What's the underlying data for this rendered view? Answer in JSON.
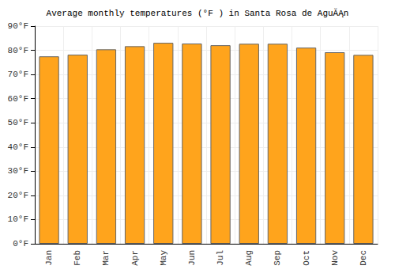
{
  "chart_data": {
    "type": "bar",
    "title": "Average monthly temperatures (°F ) in Santa Rosa de AguĂĄn",
    "categories": [
      "Jan",
      "Feb",
      "Mar",
      "Apr",
      "May",
      "Jun",
      "Jul",
      "Aug",
      "Sep",
      "Oct",
      "Nov",
      "Dec"
    ],
    "values": [
      77.5,
      78.2,
      80.4,
      81.7,
      83.1,
      82.8,
      82.1,
      82.7,
      82.7,
      81.1,
      79.2,
      78.1
    ],
    "color": "#ffa41c",
    "ylim": [
      0,
      90
    ],
    "yticks": [
      {
        "value": 0,
        "label": "0°F"
      },
      {
        "value": 10,
        "label": "10°F"
      },
      {
        "value": 20,
        "label": "20°F"
      },
      {
        "value": 30,
        "label": "30°F"
      },
      {
        "value": 40,
        "label": "40°F"
      },
      {
        "value": 50,
        "label": "50°F"
      },
      {
        "value": 60,
        "label": "60°F"
      },
      {
        "value": 70,
        "label": "70°F"
      },
      {
        "value": 80,
        "label": "80°F"
      },
      {
        "value": 90,
        "label": "90°F"
      }
    ],
    "grid": true
  }
}
